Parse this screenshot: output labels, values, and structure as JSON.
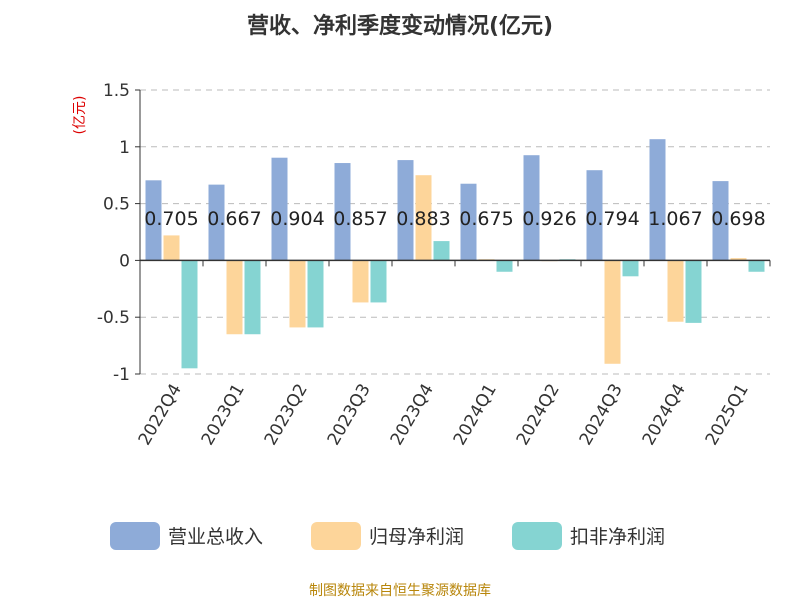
{
  "title": "营收、净利季度变动情况(亿元)",
  "source_note": "制图数据来自恒生聚源数据库",
  "colors": {
    "revenue": "#8eabd8",
    "net_profit": "#fdd59a",
    "deducted_profit": "#85d4d2"
  },
  "chart_data": {
    "type": "bar",
    "unit_label": "(亿元)",
    "categories": [
      "2022Q4",
      "2023Q1",
      "2023Q2",
      "2023Q3",
      "2023Q4",
      "2024Q1",
      "2024Q2",
      "2024Q3",
      "2024Q4",
      "2025Q1"
    ],
    "series": [
      {
        "name": "营业总收入",
        "color": "#8eabd8",
        "values": [
          0.705,
          0.667,
          0.904,
          0.857,
          0.883,
          0.675,
          0.926,
          0.794,
          1.067,
          0.698
        ]
      },
      {
        "name": "归母净利润",
        "color": "#fdd59a",
        "values": [
          0.22,
          -0.65,
          -0.59,
          -0.37,
          0.75,
          0.01,
          0.0,
          -0.91,
          -0.54,
          0.02
        ]
      },
      {
        "name": "扣非净利润",
        "color": "#85d4d2",
        "values": [
          -0.95,
          -0.65,
          -0.59,
          -0.37,
          0.17,
          -0.1,
          0.01,
          -0.14,
          -0.55,
          -0.1
        ]
      }
    ],
    "data_labels": [
      "0.705",
      "0.667",
      "0.904",
      "0.857",
      "0.883",
      "0.675",
      "0.926",
      "0.794",
      "1.067",
      "0.698"
    ],
    "y_ticks": [
      {
        "value": 1.5,
        "label": "1.5"
      },
      {
        "value": 1,
        "label": "1"
      },
      {
        "value": 0.5,
        "label": "0.5"
      },
      {
        "value": 0,
        "label": "0"
      },
      {
        "value": -0.5,
        "label": "-0.5"
      },
      {
        "value": -1,
        "label": "-1"
      }
    ],
    "ylim": [
      -1,
      1.5
    ],
    "grid": true,
    "legend_position": "bottom"
  }
}
